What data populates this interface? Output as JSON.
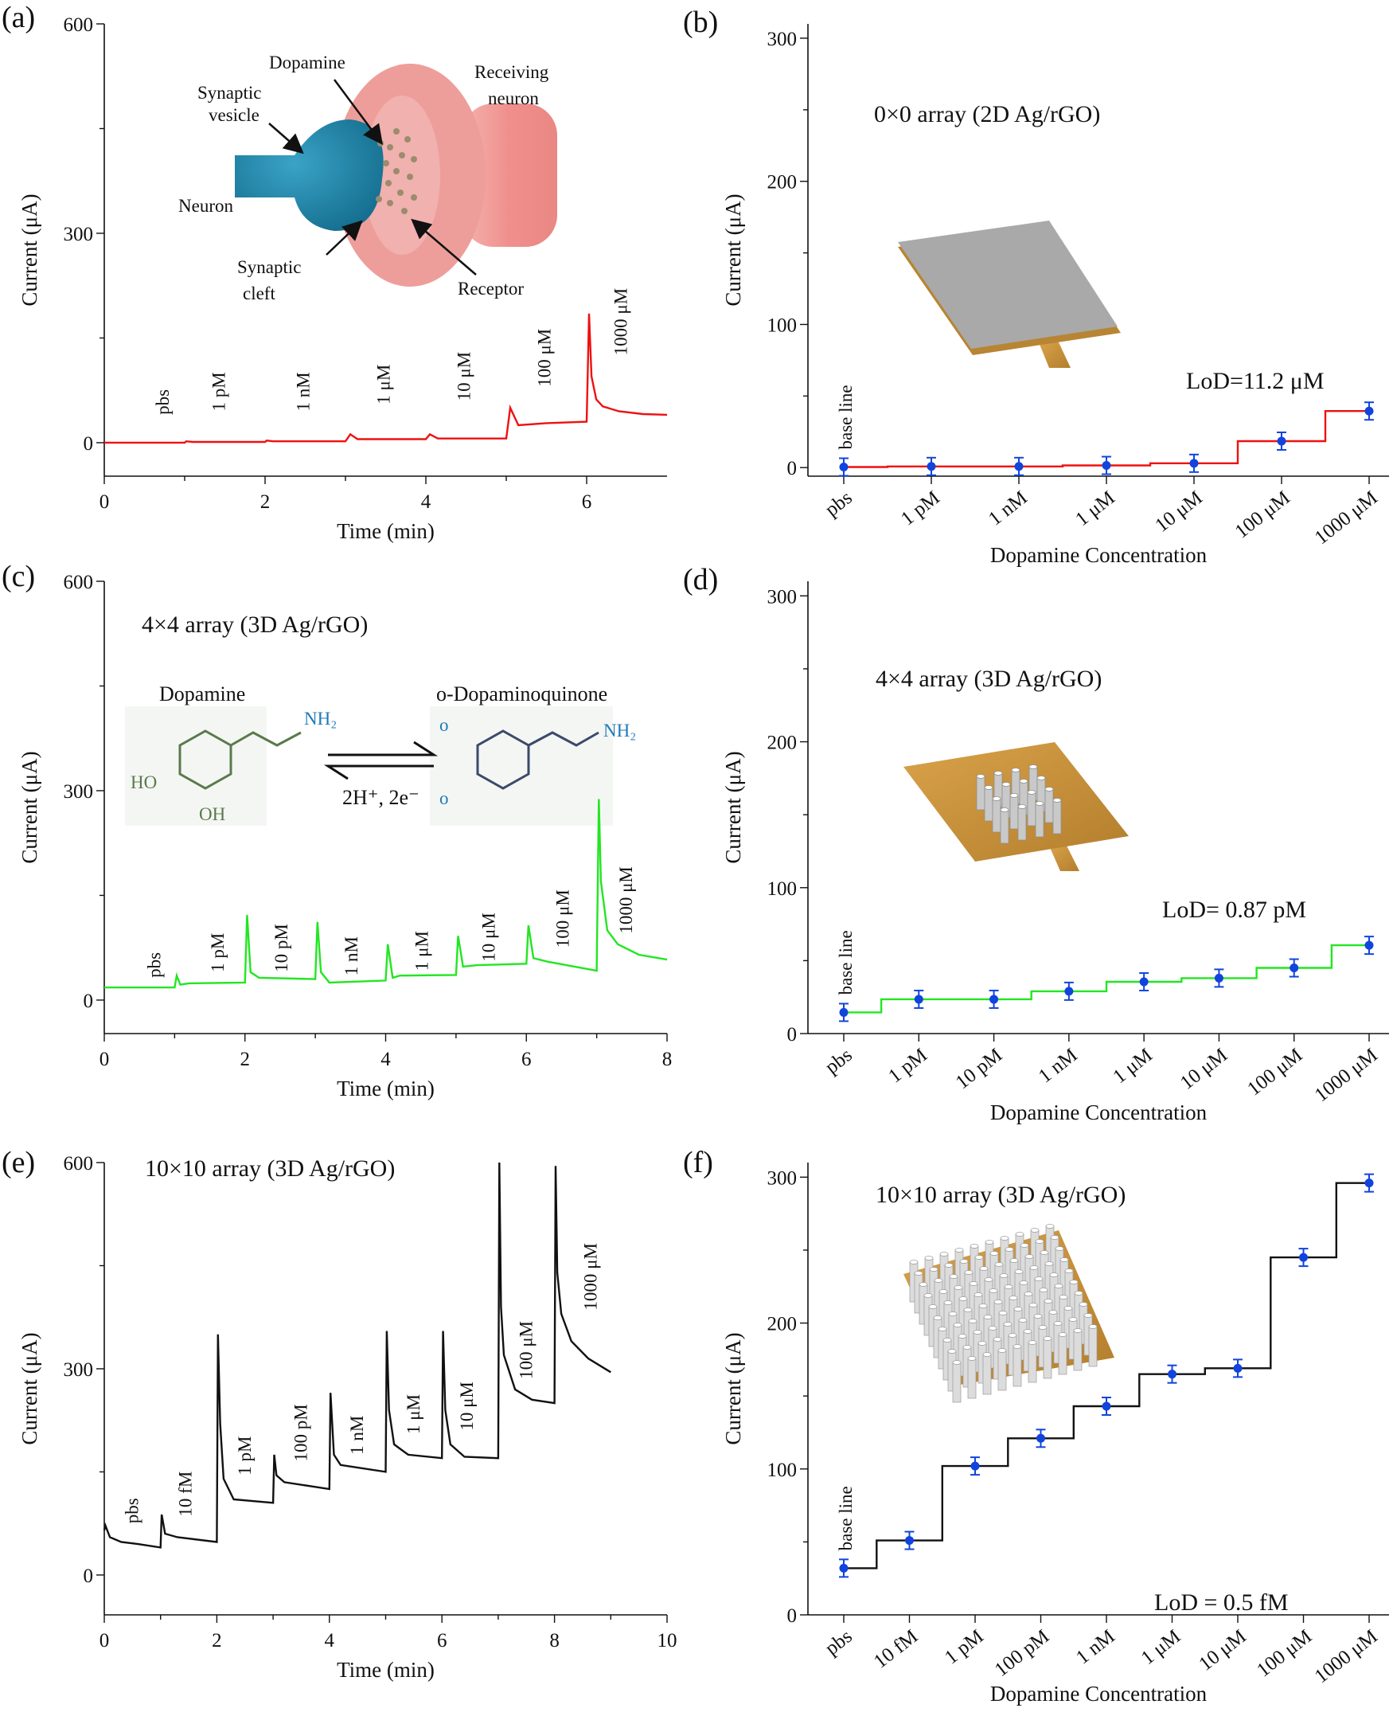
{
  "chart_data": [
    {
      "id": "a",
      "type": "line",
      "panel_label": "(a)",
      "xlabel": "Time (min)",
      "ylabel": "Current (μA)",
      "xlim": [
        0,
        7
      ],
      "ylim": [
        -48,
        600
      ],
      "xticks": [
        0,
        2,
        4,
        6
      ],
      "yticks": [
        0,
        300,
        600
      ],
      "color": "#ee1111",
      "x": [
        0,
        0.5,
        1,
        1.02,
        1.1,
        2,
        2.02,
        2.1,
        3,
        3.06,
        3.15,
        4,
        4.05,
        4.15,
        5,
        5.05,
        5.15,
        5.5,
        6,
        6.03,
        6.06,
        6.12,
        6.2,
        6.4,
        6.7,
        7
      ],
      "y": [
        0,
        0,
        0,
        2,
        1,
        1,
        3,
        2,
        2,
        12,
        5,
        5,
        12,
        6,
        6,
        50,
        25,
        28,
        30,
        185,
        95,
        62,
        52,
        45,
        41,
        40
      ],
      "segment_labels": [
        {
          "text": "pbs",
          "x": 0.8,
          "y": 40
        },
        {
          "text": "1 pM",
          "x": 1.5,
          "y": 45
        },
        {
          "text": "1 nM",
          "x": 2.55,
          "y": 45
        },
        {
          "text": "1 μM",
          "x": 3.55,
          "y": 55
        },
        {
          "text": "10 μM",
          "x": 4.55,
          "y": 60
        },
        {
          "text": "100 μM",
          "x": 5.55,
          "y": 80
        },
        {
          "text": "1000 μM",
          "x": 6.5,
          "y": 125
        }
      ],
      "inset_labels": [
        "Dopamine",
        "Synaptic",
        "vesicle",
        "Neuron",
        "Synaptic",
        "cleft",
        "Receiving",
        "neuron",
        "Receptor"
      ]
    },
    {
      "id": "b",
      "type": "step",
      "panel_label": "(b)",
      "xlabel": "Dopamine Concentration",
      "ylabel": "Current (μA)",
      "categories": [
        "pbs",
        "1 pM",
        "1 nM",
        "1 μM",
        "10 μM",
        "100 μM",
        "1000 μM"
      ],
      "values": [
        0.4,
        0.8,
        0.8,
        1.5,
        3.0,
        18.5,
        39.5
      ],
      "ylim": [
        -6,
        310
      ],
      "yticks": [
        0,
        100,
        200,
        300
      ],
      "color": "#ee1111",
      "marker_color": "#1144dd",
      "title": "0×0 array (2D Ag/rGO)",
      "annotation": "LoD=11.2 μM",
      "baseline_label": "base line"
    },
    {
      "id": "c",
      "type": "line",
      "panel_label": "(c)",
      "xlabel": "Time (min)",
      "ylabel": "Current (μA)",
      "xlim": [
        0,
        8
      ],
      "ylim": [
        -48,
        600
      ],
      "xticks": [
        0,
        2,
        4,
        6,
        8
      ],
      "yticks": [
        0,
        300,
        600
      ],
      "color": "#22e622",
      "x": [
        0,
        1,
        1.03,
        1.08,
        1.2,
        2,
        2.03,
        2.08,
        2.2,
        3,
        3.03,
        3.08,
        3.2,
        4,
        4.03,
        4.1,
        4.2,
        5,
        5.03,
        5.1,
        5.3,
        6,
        6.03,
        6.1,
        6.3,
        7,
        7.03,
        7.06,
        7.15,
        7.3,
        7.6,
        8
      ],
      "y": [
        18,
        18,
        35,
        22,
        24,
        25,
        122,
        40,
        32,
        30,
        112,
        40,
        25,
        28,
        80,
        32,
        35,
        36,
        92,
        48,
        50,
        52,
        107,
        60,
        55,
        42,
        288,
        170,
        100,
        80,
        65,
        58
      ],
      "segment_labels": [
        {
          "text": "pbs",
          "x": 0.8,
          "y": 32
        },
        {
          "text": "1 pM",
          "x": 1.7,
          "y": 40
        },
        {
          "text": "10 pM",
          "x": 2.6,
          "y": 40
        },
        {
          "text": "1 nM",
          "x": 3.6,
          "y": 35
        },
        {
          "text": "1 μM",
          "x": 4.6,
          "y": 42
        },
        {
          "text": "10 μM",
          "x": 5.55,
          "y": 55
        },
        {
          "text": "100 μM",
          "x": 6.6,
          "y": 75
        },
        {
          "text": "1000 μM",
          "x": 7.5,
          "y": 95
        }
      ],
      "title": "4×4 array (3D Ag/rGO)",
      "reaction": {
        "reactant": "Dopamine",
        "product": "o-Dopaminoquinone",
        "conditions": "2H⁺, 2e⁻"
      }
    },
    {
      "id": "d",
      "type": "step",
      "panel_label": "(d)",
      "xlabel": "Dopamine Concentration",
      "ylabel": "Current (μA)",
      "categories": [
        "pbs",
        "1 pM",
        "10 pM",
        "1 nM",
        "1 μM",
        "10 μM",
        "100 μM",
        "1000 μM"
      ],
      "values": [
        14.5,
        23.5,
        23.5,
        29,
        35.5,
        38,
        45,
        60.5
      ],
      "ylim": [
        0,
        310
      ],
      "yticks": [
        0,
        100,
        200,
        300
      ],
      "color": "#22e622",
      "marker_color": "#1144dd",
      "title": "4×4 array (3D Ag/rGO)",
      "annotation": "LoD= 0.87 pM",
      "baseline_label": "base line"
    },
    {
      "id": "e",
      "type": "line",
      "panel_label": "(e)",
      "xlabel": "Time (min)",
      "ylabel": "Current (μA)",
      "xlim": [
        0,
        10
      ],
      "ylim": [
        -58,
        600
      ],
      "xticks": [
        0,
        2,
        4,
        6,
        8,
        10
      ],
      "yticks": [
        0,
        300,
        600
      ],
      "color": "#111111",
      "x": [
        0,
        0.02,
        0.1,
        0.3,
        0.6,
        1,
        1.02,
        1.08,
        1.3,
        2,
        2.02,
        2.06,
        2.12,
        2.3,
        3,
        3.02,
        3.06,
        3.2,
        4,
        4.02,
        4.08,
        4.2,
        5,
        5.02,
        5.06,
        5.15,
        5.4,
        6,
        6.02,
        6.06,
        6.15,
        6.4,
        7,
        7.02,
        7.05,
        7.1,
        7.3,
        7.6,
        8,
        8.02,
        8.05,
        8.12,
        8.3,
        8.6,
        9
      ],
      "y": [
        65,
        72,
        55,
        48,
        45,
        40,
        88,
        60,
        55,
        48,
        350,
        220,
        140,
        110,
        105,
        175,
        145,
        135,
        125,
        265,
        175,
        160,
        150,
        355,
        240,
        190,
        175,
        170,
        355,
        240,
        190,
        172,
        170,
        600,
        390,
        320,
        270,
        255,
        250,
        595,
        440,
        380,
        340,
        315,
        295
      ],
      "segment_labels": [
        {
          "text": "pbs",
          "x": 0.6,
          "y": 75
        },
        {
          "text": "10 fM",
          "x": 1.55,
          "y": 85
        },
        {
          "text": "1 pM",
          "x": 2.6,
          "y": 145
        },
        {
          "text": "100 pM",
          "x": 3.6,
          "y": 165
        },
        {
          "text": "1 nM",
          "x": 4.6,
          "y": 175
        },
        {
          "text": "1 μM",
          "x": 5.6,
          "y": 205
        },
        {
          "text": "10 μM",
          "x": 6.55,
          "y": 210
        },
        {
          "text": "100 μM",
          "x": 7.6,
          "y": 285
        },
        {
          "text": "1000 μM",
          "x": 8.75,
          "y": 385
        }
      ],
      "title": "10×10 array (3D Ag/rGO)"
    },
    {
      "id": "f",
      "type": "step",
      "panel_label": "(f)",
      "xlabel": "Dopamine Concentration",
      "ylabel": "Current (μA)",
      "categories": [
        "pbs",
        "10 fM",
        "1 pM",
        "100 pM",
        "1 nM",
        "1 μM",
        "10 μM",
        "100 μM",
        "1000 μM"
      ],
      "values": [
        32,
        51,
        102,
        121,
        143,
        165,
        169,
        245,
        296
      ],
      "ylim": [
        0,
        310
      ],
      "yticks": [
        0,
        100,
        200,
        300
      ],
      "color": "#111111",
      "marker_color": "#1144dd",
      "title": "10×10 array (3D Ag/rGO)",
      "annotation": "LoD = 0.5 fM",
      "baseline_label": "base line"
    }
  ]
}
